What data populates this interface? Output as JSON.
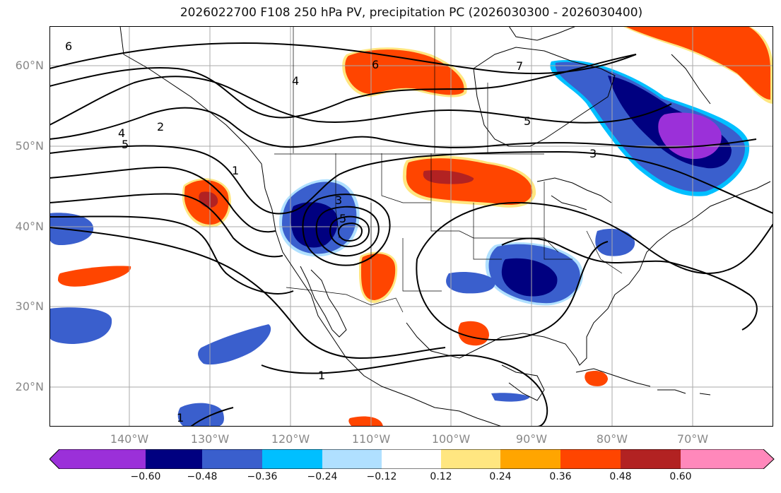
{
  "title": "2026022700 F108 250 hPa PV, precipitation PC (2026030300 - 2026030400)",
  "lat_labels": [
    "60°N",
    "50°N",
    "40°N",
    "30°N",
    "20°N"
  ],
  "lon_labels": [
    "140°W",
    "130°W",
    "120°W",
    "110°W",
    "100°W",
    "90°W",
    "80°W",
    "70°W"
  ],
  "contour_labels": [
    "6",
    "6",
    "7",
    "4",
    "2",
    "4",
    "5",
    "1",
    "5",
    "3",
    "3",
    "5",
    "1",
    "1"
  ],
  "colorbar": {
    "ticks": [
      "−0.60",
      "−0.48",
      "−0.36",
      "−0.24",
      "−0.12",
      "0.12",
      "0.24",
      "0.36",
      "0.48",
      "0.60"
    ],
    "colors": [
      "#9b30d9",
      "#000080",
      "#3a5fcd",
      "#00bfff",
      "#b0e0ff",
      "#ffffff",
      "#ffe680",
      "#ffa500",
      "#ff4500",
      "#b22222",
      "#ff88bb"
    ]
  },
  "colors": {
    "coast": "#000000",
    "contour": "#000000",
    "grid": "#aaaaaa"
  }
}
